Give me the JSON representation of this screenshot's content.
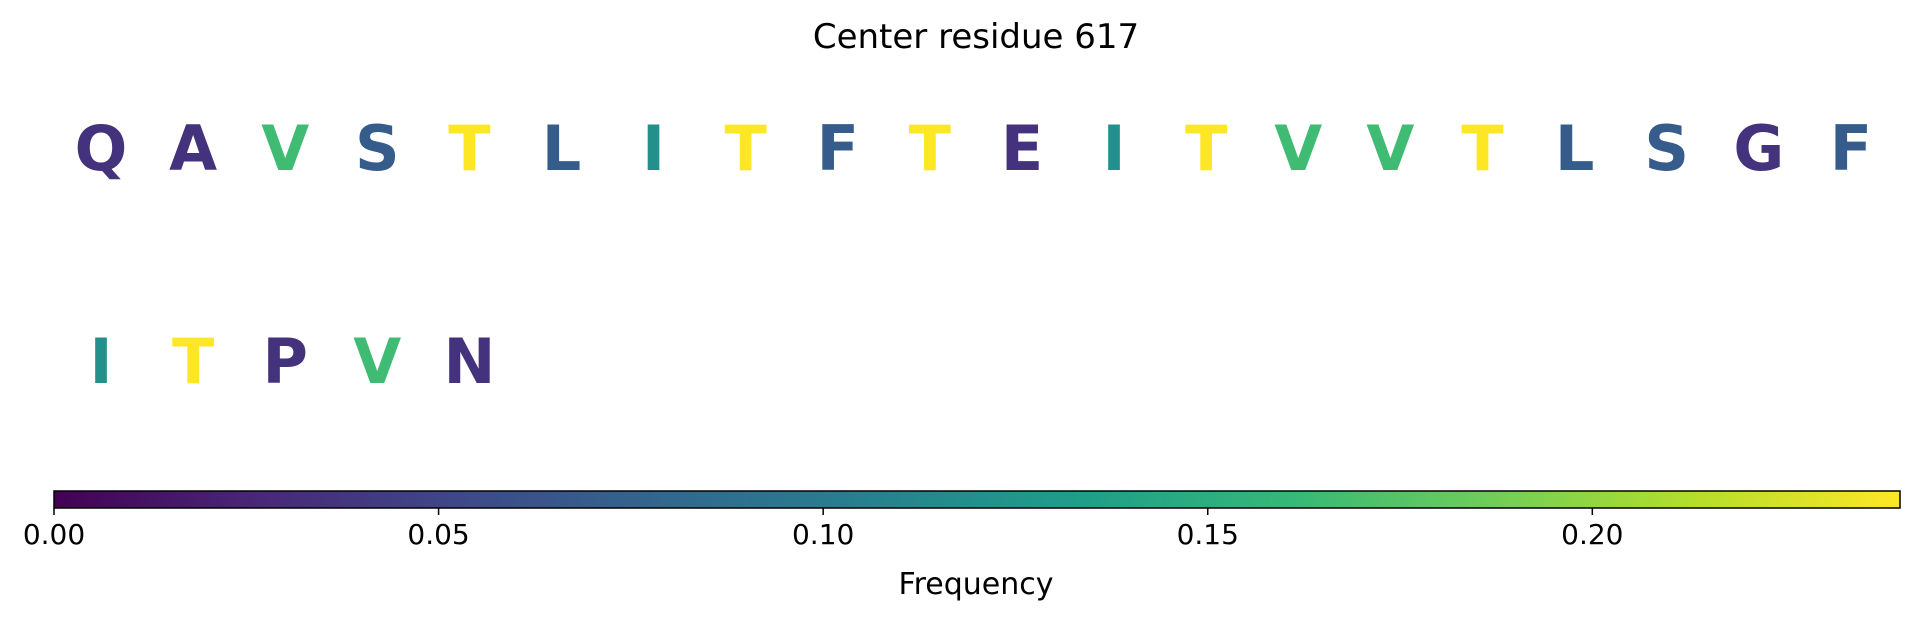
{
  "chart_data": {
    "type": "heatmap",
    "title": "Center residue 617",
    "residues": [
      {
        "letter": "Q",
        "value": 0.035
      },
      {
        "letter": "A",
        "value": 0.035
      },
      {
        "letter": "V",
        "value": 0.165
      },
      {
        "letter": "S",
        "value": 0.07
      },
      {
        "letter": "T",
        "value": 0.24
      },
      {
        "letter": "L",
        "value": 0.07
      },
      {
        "letter": "I",
        "value": 0.12
      },
      {
        "letter": "T",
        "value": 0.24
      },
      {
        "letter": "F",
        "value": 0.07
      },
      {
        "letter": "T",
        "value": 0.24
      },
      {
        "letter": "E",
        "value": 0.035
      },
      {
        "letter": "I",
        "value": 0.12
      },
      {
        "letter": "T",
        "value": 0.24
      },
      {
        "letter": "V",
        "value": 0.165
      },
      {
        "letter": "V",
        "value": 0.165
      },
      {
        "letter": "T",
        "value": 0.24
      },
      {
        "letter": "L",
        "value": 0.07
      },
      {
        "letter": "S",
        "value": 0.07
      },
      {
        "letter": "G",
        "value": 0.035
      },
      {
        "letter": "F",
        "value": 0.07
      },
      {
        "letter": "I",
        "value": 0.12
      },
      {
        "letter": "T",
        "value": 0.24
      },
      {
        "letter": "P",
        "value": 0.035
      },
      {
        "letter": "V",
        "value": 0.165
      },
      {
        "letter": "N",
        "value": 0.035
      }
    ],
    "per_row": 20,
    "colorbar": {
      "label": "Frequency",
      "colormap": "viridis",
      "range": [
        0,
        0.24
      ],
      "ticks": [
        0.0,
        0.05,
        0.1,
        0.15,
        0.2
      ],
      "tick_labels": [
        "0.00",
        "0.05",
        "0.10",
        "0.15",
        "0.20"
      ]
    }
  }
}
